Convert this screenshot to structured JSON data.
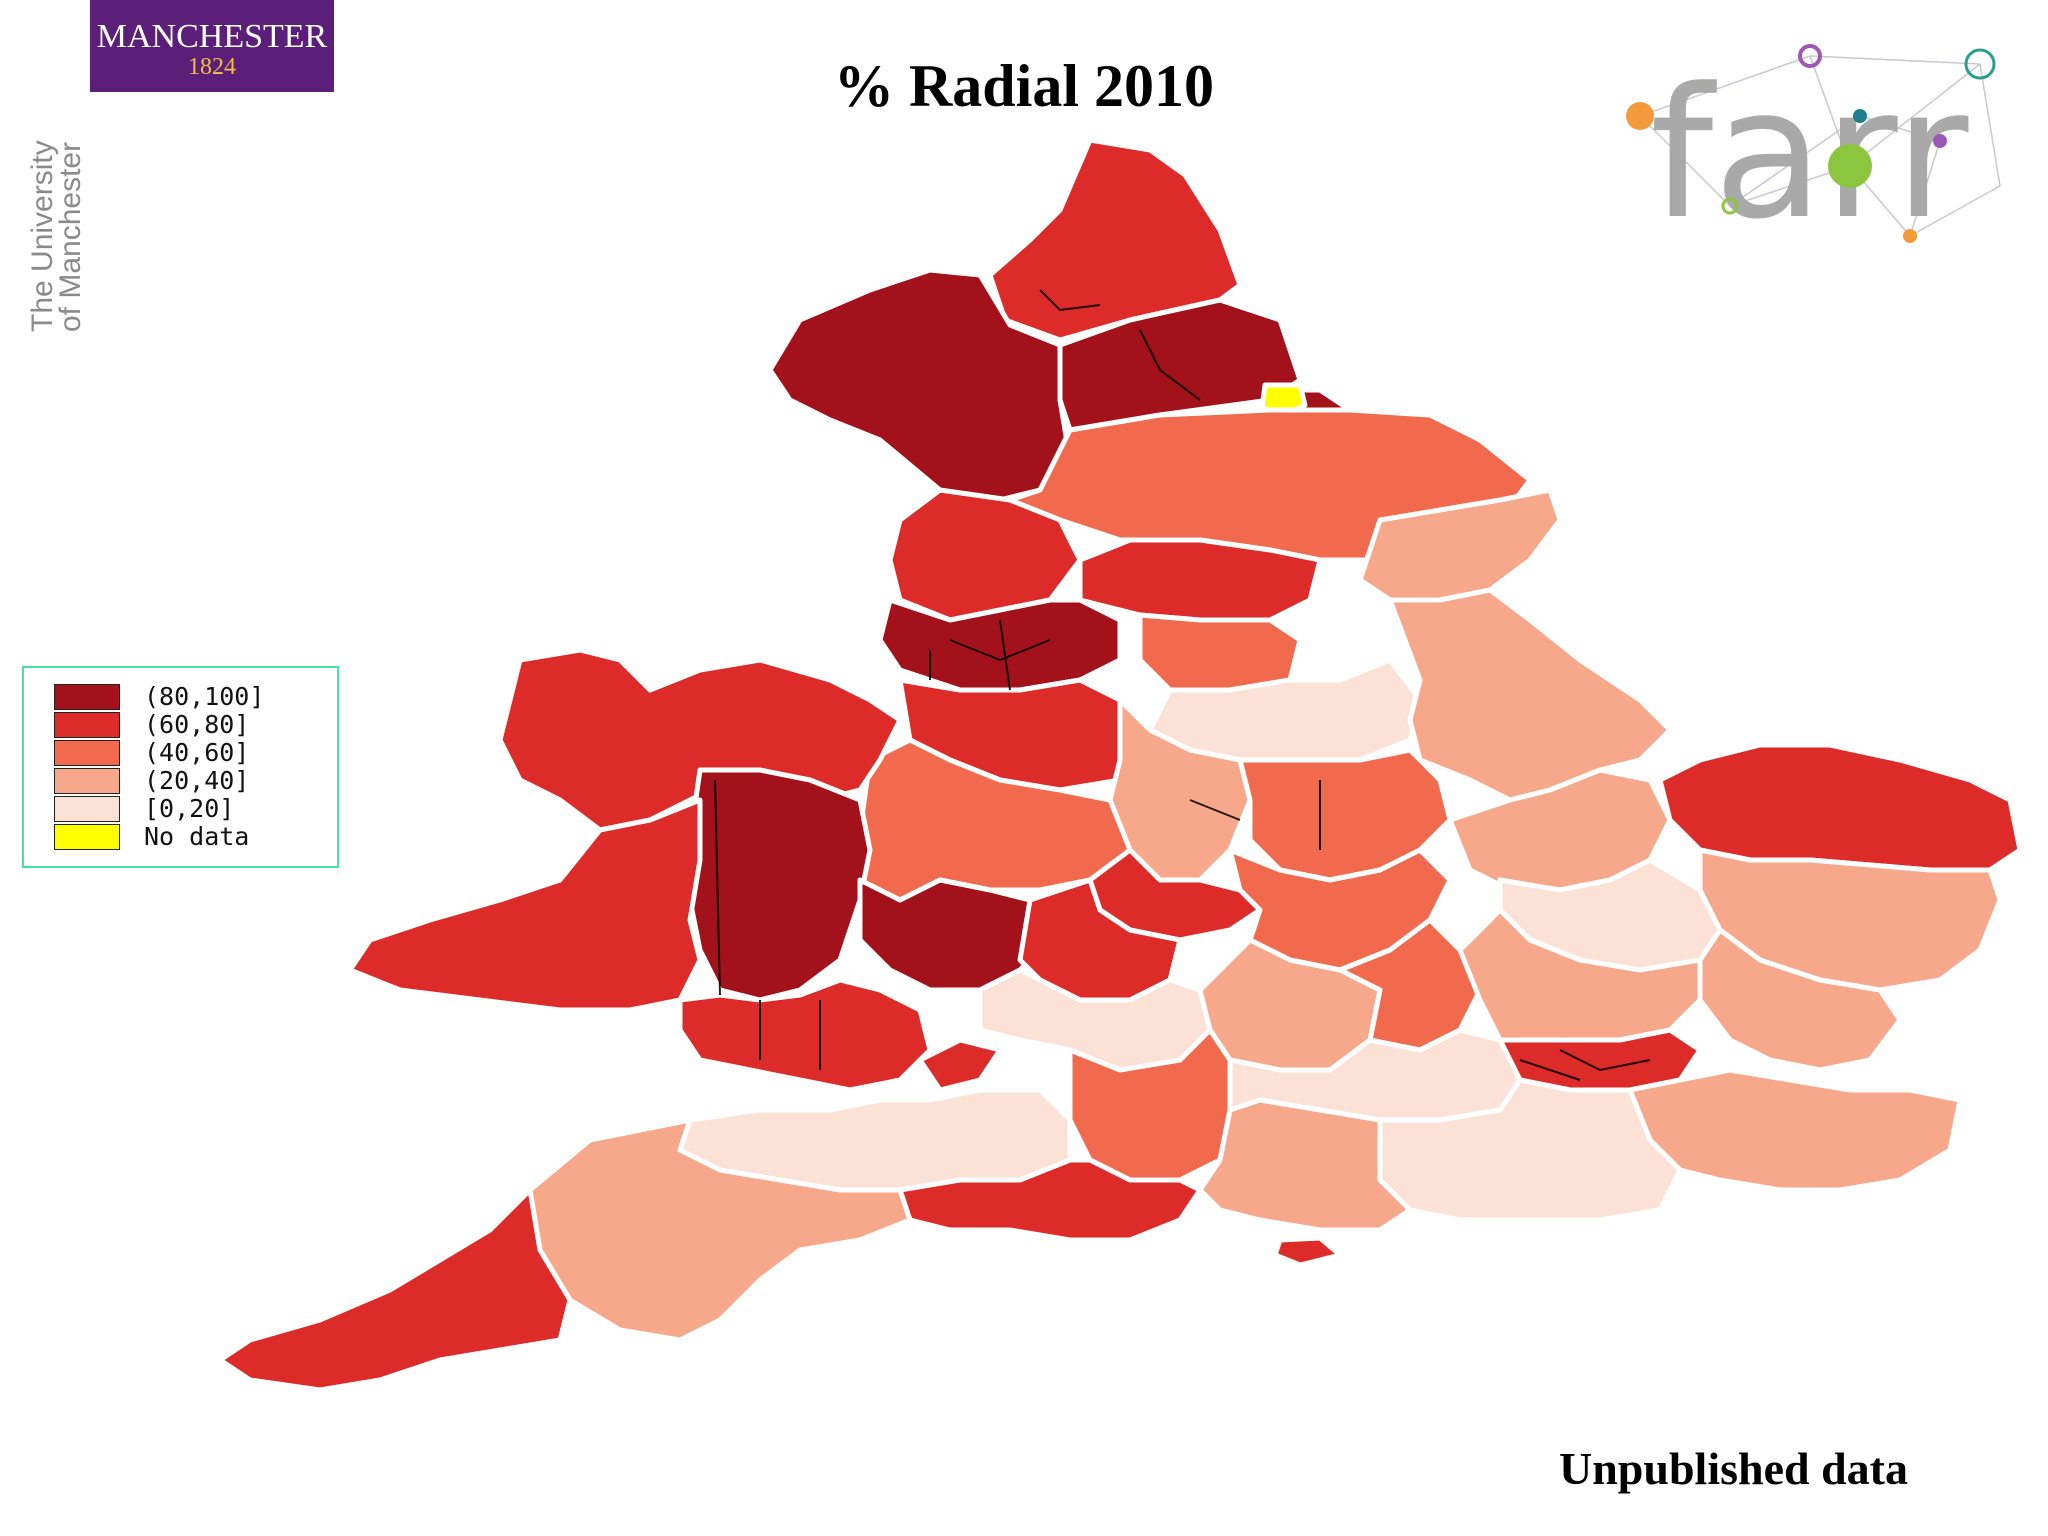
{
  "title": "% Radial 2010",
  "university_logo": {
    "name": "MANCHESTER",
    "year": "1824"
  },
  "university_side_text": [
    "The University",
    "of Manchester"
  ],
  "farr_logo": {
    "text": "farr"
  },
  "legend": {
    "items": [
      {
        "label": "(80,100]",
        "color": "#a3111a"
      },
      {
        "label": "(60,80]",
        "color": "#dc2b29"
      },
      {
        "label": "(40,60]",
        "color": "#f26a4d"
      },
      {
        "label": "(20,40]",
        "color": "#f7a88a"
      },
      {
        "label": "[0,20]",
        "color": "#fce1d6"
      },
      {
        "label": "No data",
        "color": "#ffff00"
      }
    ]
  },
  "footnote": "Unpublished data"
}
